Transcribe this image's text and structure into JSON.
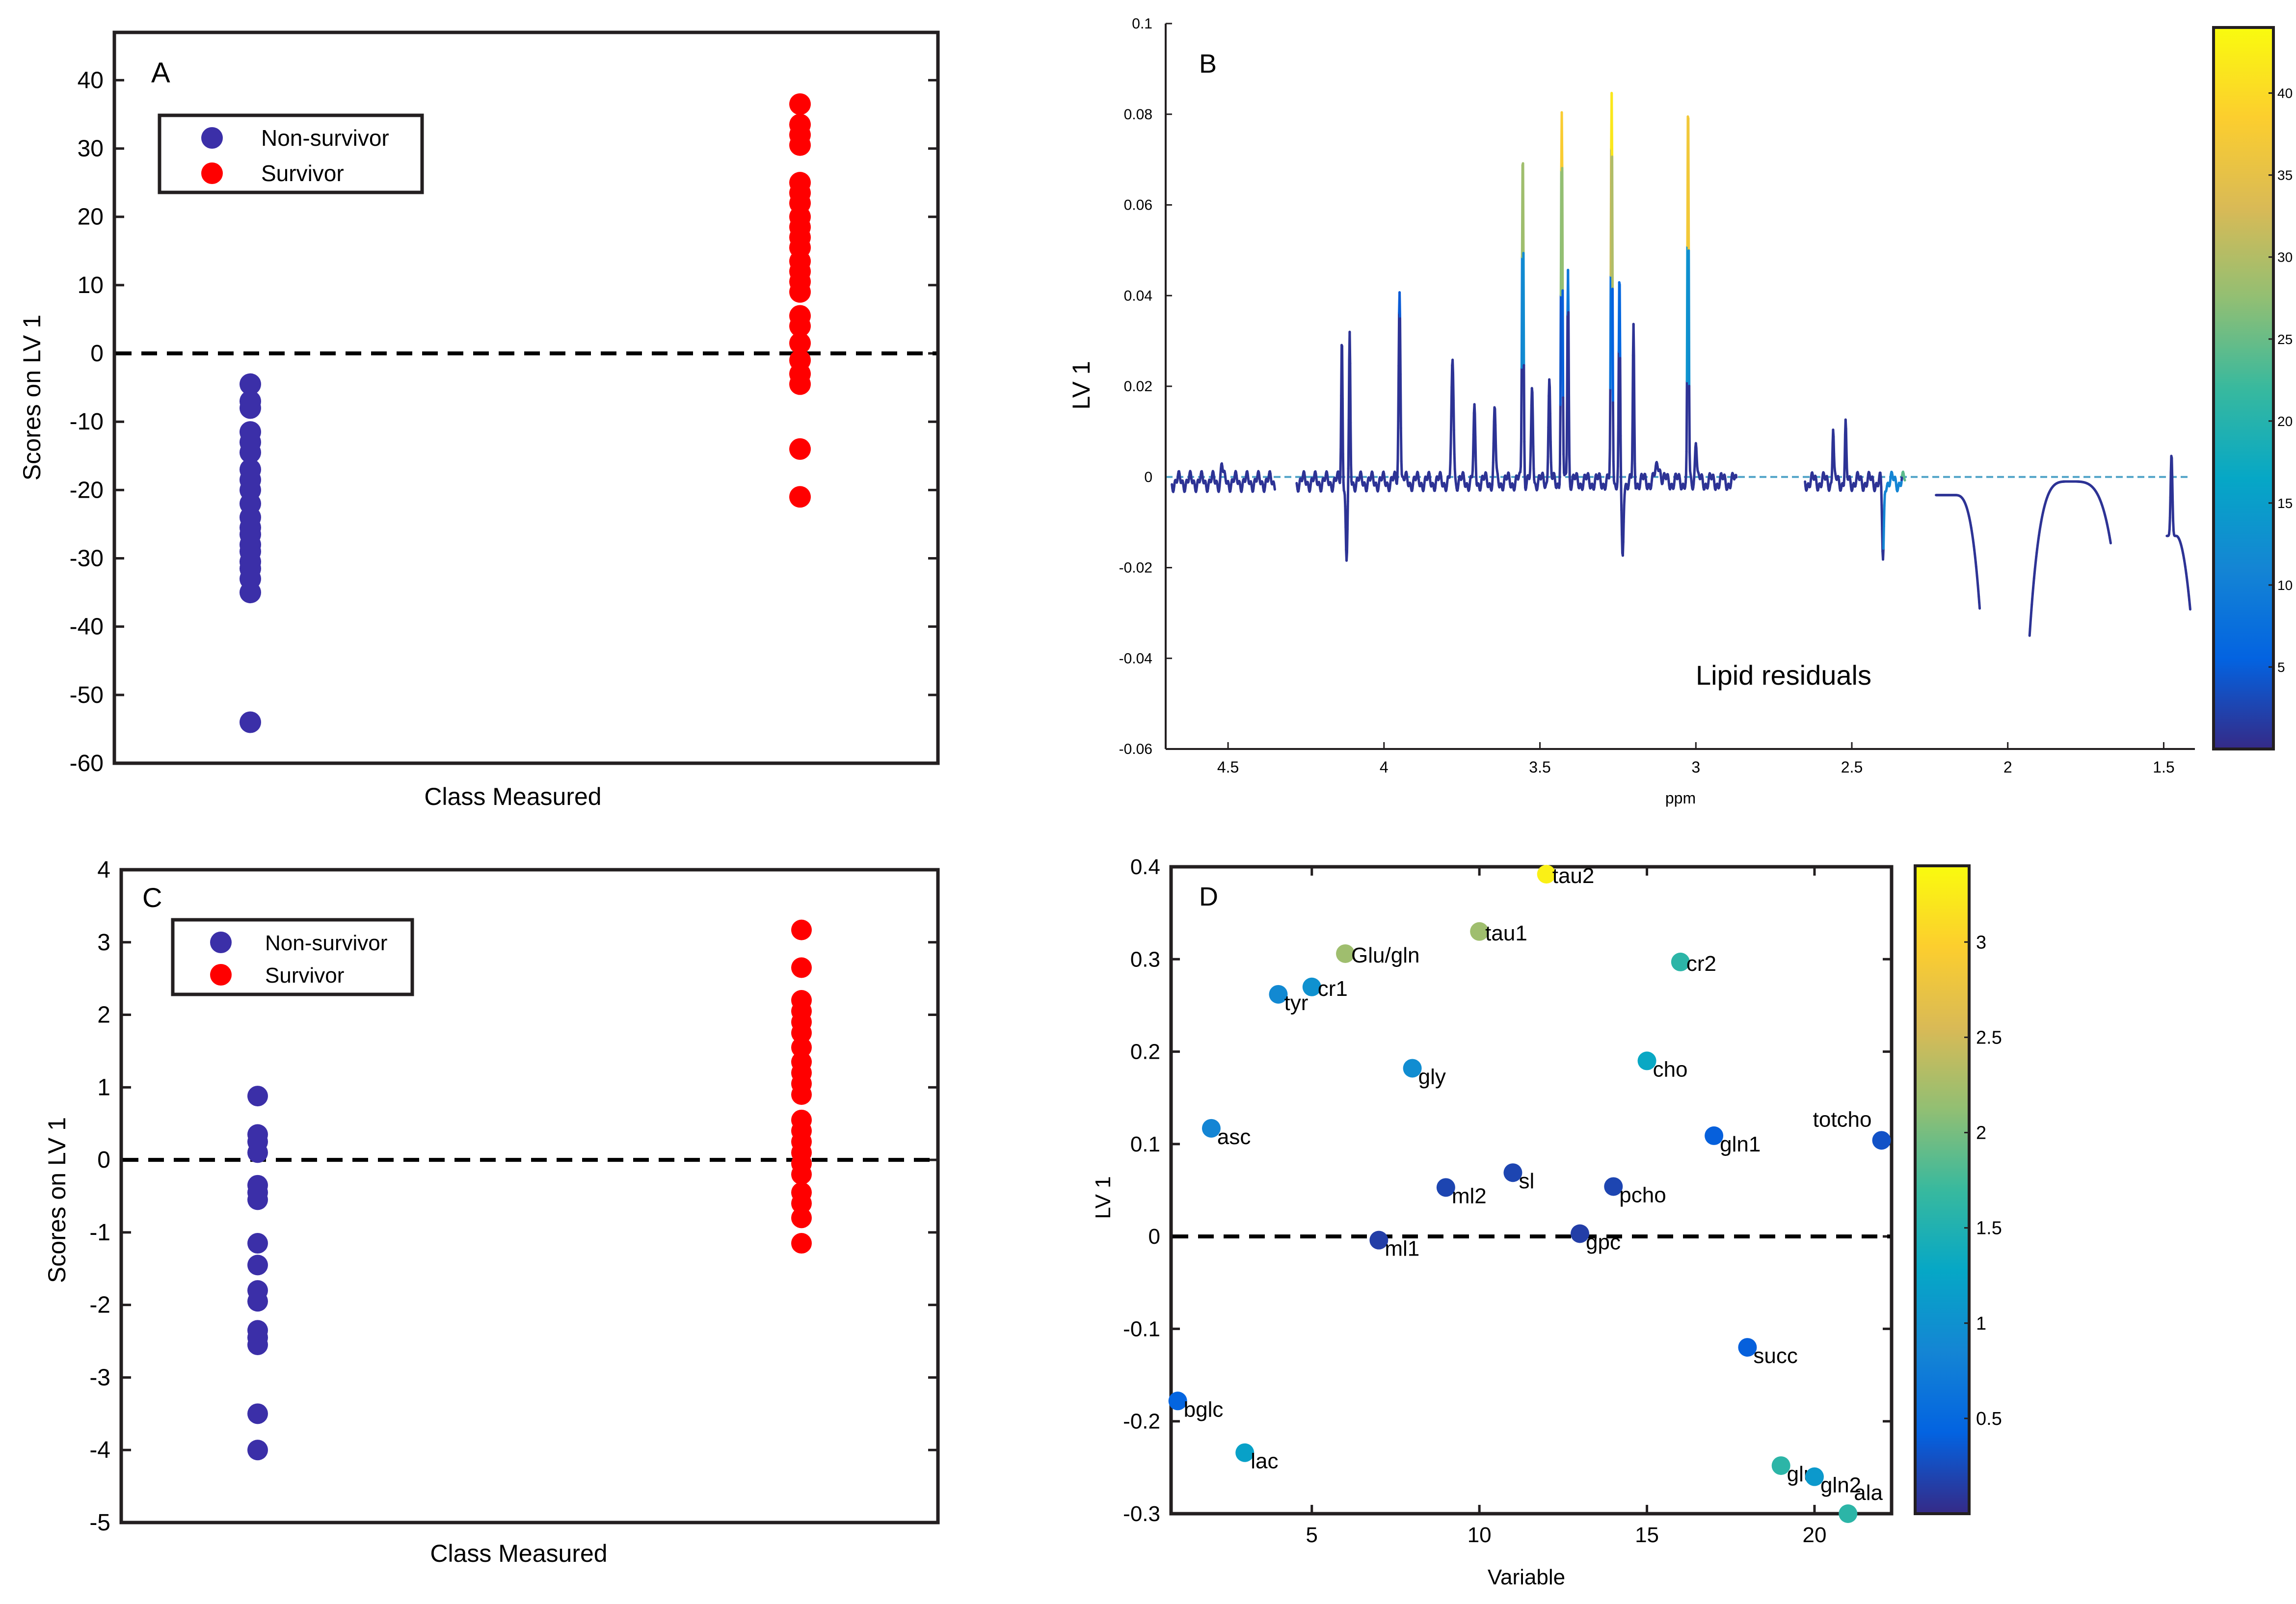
{
  "colors": {
    "non_survivor": "#3b2fa8",
    "survivor": "#ff0000",
    "frame": "#231f20",
    "parula": [
      "#352a87",
      "#0363e1",
      "#1485d4",
      "#06a7c6",
      "#38b99e",
      "#92bf73",
      "#d9ba56",
      "#fcce2e",
      "#f9fb0e"
    ]
  },
  "chart_data": [
    {
      "panel": "A",
      "type": "scatter",
      "xlabel": "Class Measured",
      "ylabel": "Scores on LV 1",
      "ylim": [
        -60,
        47
      ],
      "yticks": [
        40,
        30,
        20,
        10,
        0,
        -10,
        -20,
        -30,
        -40,
        -50,
        -60
      ],
      "legend_position": "top-left",
      "series": [
        {
          "name": "Non-survivor",
          "x": 1,
          "values": [
            -4.5,
            -7,
            -8,
            -11.5,
            -13,
            -14.5,
            -17,
            -18.5,
            -20,
            -22,
            -24,
            -25.5,
            -26.5,
            -28,
            -29,
            -30.5,
            -31.5,
            -33,
            -35,
            -54
          ]
        },
        {
          "name": "Survivor",
          "x": 2,
          "values": [
            36.5,
            33.5,
            32,
            30.5,
            25,
            23.5,
            22,
            20,
            18.5,
            17,
            15.5,
            13.5,
            12,
            10.5,
            9,
            5.5,
            4,
            1.5,
            -1,
            -3,
            -4.5,
            -14,
            -21
          ]
        }
      ]
    },
    {
      "panel": "B",
      "type": "line",
      "xlabel": "ppm",
      "ylabel": "LV 1",
      "xlim": [
        4.7,
        1.4
      ],
      "ylim": [
        -0.06,
        0.1
      ],
      "xticks": [
        4.5,
        4,
        3.5,
        3,
        2.5,
        2,
        1.5
      ],
      "yticks": [
        0.1,
        0.08,
        0.06,
        0.04,
        0.02,
        0,
        -0.02,
        -0.04,
        -0.06
      ],
      "annotation": "Lipid residuals",
      "colorbar_ticks": [
        40,
        35,
        30,
        25,
        20,
        15,
        10,
        5
      ],
      "colorbar_range": [
        0,
        44
      ]
    },
    {
      "panel": "C",
      "type": "scatter",
      "xlabel": "Class Measured",
      "ylabel": "Scores on LV 1",
      "ylim": [
        -5,
        4
      ],
      "yticks": [
        4,
        3,
        2,
        1,
        0,
        -1,
        -2,
        -3,
        -4,
        -5
      ],
      "legend_position": "top-left",
      "series": [
        {
          "name": "Non-survivor",
          "x": 1,
          "values": [
            0.88,
            0.35,
            0.25,
            0.1,
            -0.35,
            -0.45,
            -0.55,
            -1.15,
            -1.45,
            -1.8,
            -1.95,
            -2.35,
            -2.45,
            -2.55,
            -3.5,
            -4.0
          ]
        },
        {
          "name": "Survivor",
          "x": 2,
          "values": [
            3.17,
            2.65,
            2.2,
            2.05,
            1.9,
            1.75,
            1.55,
            1.35,
            1.2,
            1.05,
            0.9,
            0.55,
            0.4,
            0.25,
            0.1,
            -0.05,
            -0.2,
            -0.45,
            -0.6,
            -0.8,
            -1.15
          ]
        }
      ]
    },
    {
      "panel": "D",
      "type": "scatter",
      "xlabel": "Variable",
      "ylabel": "LV 1",
      "xlim": [
        0.8,
        22.3
      ],
      "ylim": [
        -0.3,
        0.4
      ],
      "xticks": [
        5,
        10,
        15,
        20
      ],
      "yticks": [
        0.4,
        0.3,
        0.2,
        0.1,
        0,
        -0.1,
        -0.2,
        -0.3
      ],
      "colorbar_ticks": [
        "3",
        "2.5",
        "2",
        "1.5",
        "1",
        "0.5"
      ],
      "colorbar_values": [
        3,
        2.5,
        2,
        1.5,
        1,
        0.5
      ],
      "colorbar_range": [
        0,
        3.4
      ],
      "points": [
        {
          "label": "bglc",
          "x": 1,
          "y": -0.178,
          "c": 0.45
        },
        {
          "label": "asc",
          "x": 2,
          "y": 0.117,
          "c": 0.85
        },
        {
          "label": "lac",
          "x": 3,
          "y": -0.234,
          "c": 1.2
        },
        {
          "label": "tyr",
          "x": 4,
          "y": 0.262,
          "c": 0.9
        },
        {
          "label": "cr1",
          "x": 5,
          "y": 0.27,
          "c": 1.0
        },
        {
          "label": "Glu/gln",
          "x": 6,
          "y": 0.306,
          "c": 2.2
        },
        {
          "label": "ml1",
          "x": 7,
          "y": -0.004,
          "c": 0.15
        },
        {
          "label": "gly",
          "x": 8,
          "y": 0.182,
          "c": 0.95
        },
        {
          "label": "ml2",
          "x": 9,
          "y": 0.053,
          "c": 0.2
        },
        {
          "label": "tau1",
          "x": 10,
          "y": 0.33,
          "c": 2.2
        },
        {
          "label": "sl",
          "x": 11,
          "y": 0.069,
          "c": 0.2
        },
        {
          "label": "tau2",
          "x": 12,
          "y": 0.392,
          "c": 3.3
        },
        {
          "label": "gpc",
          "x": 13,
          "y": 0.003,
          "c": 0.15
        },
        {
          "label": "pcho",
          "x": 14,
          "y": 0.054,
          "c": 0.2
        },
        {
          "label": "cho",
          "x": 15,
          "y": 0.19,
          "c": 1.3
        },
        {
          "label": "cr2",
          "x": 16,
          "y": 0.297,
          "c": 1.6
        },
        {
          "label": "gln1",
          "x": 17,
          "y": 0.109,
          "c": 0.4
        },
        {
          "label": "succ",
          "x": 18,
          "y": -0.12,
          "c": 0.4
        },
        {
          "label": "glu",
          "x": 19,
          "y": -0.248,
          "c": 1.6
        },
        {
          "label": "gln2",
          "x": 20,
          "y": -0.26,
          "c": 1.1
        },
        {
          "label": "ala",
          "x": 21,
          "y": -0.3,
          "c": 1.6
        },
        {
          "label": "totcho",
          "x": 22,
          "y": 0.104,
          "c": 0.3
        }
      ]
    }
  ]
}
